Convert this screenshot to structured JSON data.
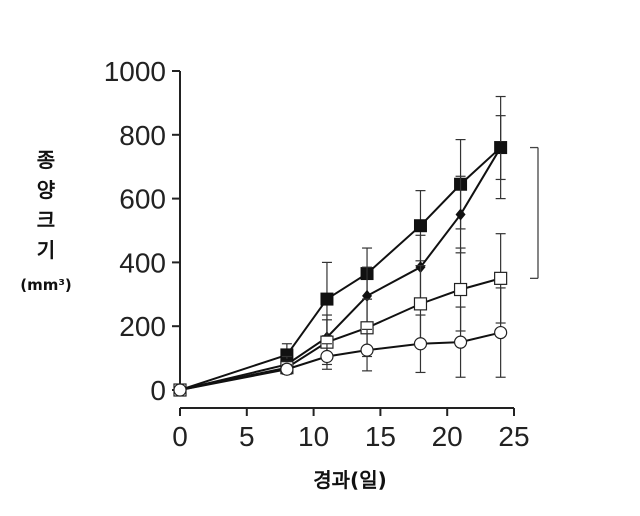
{
  "chart_data": {
    "type": "line",
    "xlabel": "경과(일)",
    "ylabel_lines": [
      "종",
      "양",
      "크",
      "기",
      "(mm³)"
    ],
    "xlim": [
      0,
      25
    ],
    "ylim": [
      0,
      1000
    ],
    "x_ticks": [
      "0",
      "5",
      "10",
      "15",
      "20",
      "25"
    ],
    "y_ticks": [
      "0",
      "200",
      "400",
      "600",
      "800",
      "1000"
    ],
    "grid": false,
    "legend": "none",
    "x": [
      0,
      8,
      11,
      14,
      18,
      21,
      24
    ],
    "series": [
      {
        "marker": "filled-square",
        "values": [
          0,
          110,
          285,
          365,
          515,
          645,
          760
        ],
        "errors": [
          0,
          35,
          115,
          80,
          110,
          140,
          160
        ]
      },
      {
        "marker": "filled-diamond",
        "values": [
          0,
          80,
          165,
          295,
          385,
          550,
          760
        ],
        "errors": [
          0,
          25,
          70,
          90,
          100,
          120,
          100
        ]
      },
      {
        "marker": "open-square",
        "values": [
          0,
          70,
          150,
          195,
          270,
          315,
          350
        ],
        "errors": [
          0,
          20,
          70,
          90,
          120,
          130,
          140
        ]
      },
      {
        "marker": "open-circle",
        "values": [
          0,
          65,
          105,
          125,
          145,
          150,
          180
        ],
        "errors": [
          0,
          15,
          40,
          65,
          90,
          110,
          140
        ]
      }
    ],
    "bracket": {
      "y_from": 350,
      "y_to": 760
    }
  }
}
